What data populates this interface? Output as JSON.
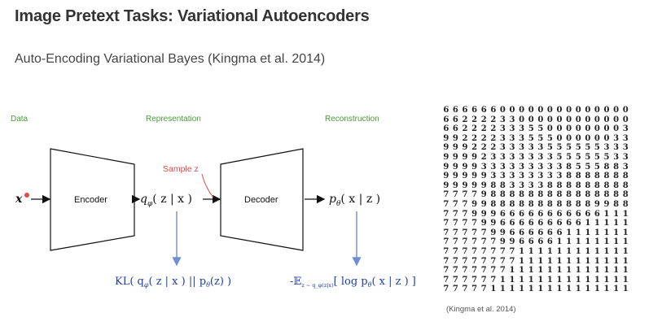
{
  "title": "Image Pretext Tasks: Variational Autoencoders",
  "subtitle": "Auto-Encoding Variational Bayes  (Kingma et al. 2014)",
  "labels": {
    "data": "Data",
    "representation": "Representation",
    "reconstruction": "Reconstruction"
  },
  "diagram": {
    "input_x": "x",
    "encoder": "Encoder",
    "decoder": "Decoder",
    "q_label": "q",
    "q_sub": "φ",
    "q_args": "( z | x )",
    "sample": "Sample z",
    "p_label": "p",
    "p_sub": "θ",
    "p_args": "( x | z )",
    "kl": "KL( q",
    "kl_sub": "φ",
    "kl_mid": "( z | x ) || p",
    "kl_sub2": "θ",
    "kl_end": "(z) )",
    "exp_pre": "-𝔼",
    "exp_sub": "z ~ q_φ(z|x)",
    "exp_mid": "[ log p",
    "exp_sub2": "θ",
    "exp_end": "( x | z ) ]",
    "colors": {
      "arrow_blue": "#6f8fd3",
      "math_blue": "#1f3fa8",
      "sample_red": "#d94a4a",
      "label_green": "#4a9a3a"
    }
  },
  "digit_rows": [
    "66666600000000000000",
    "66222233000000000000",
    "66222233355000000003",
    "99222233355500000033",
    "99922233333555555333",
    "99992333333355555533",
    "99993333333338555883",
    "99999333333338888888",
    "99999883333888888888",
    "77779888888888888888",
    "77799888888888889988",
    "77799966666666666111",
    "77779966666666611111",
    "77777996666661111111",
    "77777799666611111111",
    "77777777111111111111",
    "77777777111111111111",
    "77777771111111111111",
    "77777711111111111111",
    "77777111111111111111"
  ],
  "citation": "(Kingma et al. 2014)"
}
